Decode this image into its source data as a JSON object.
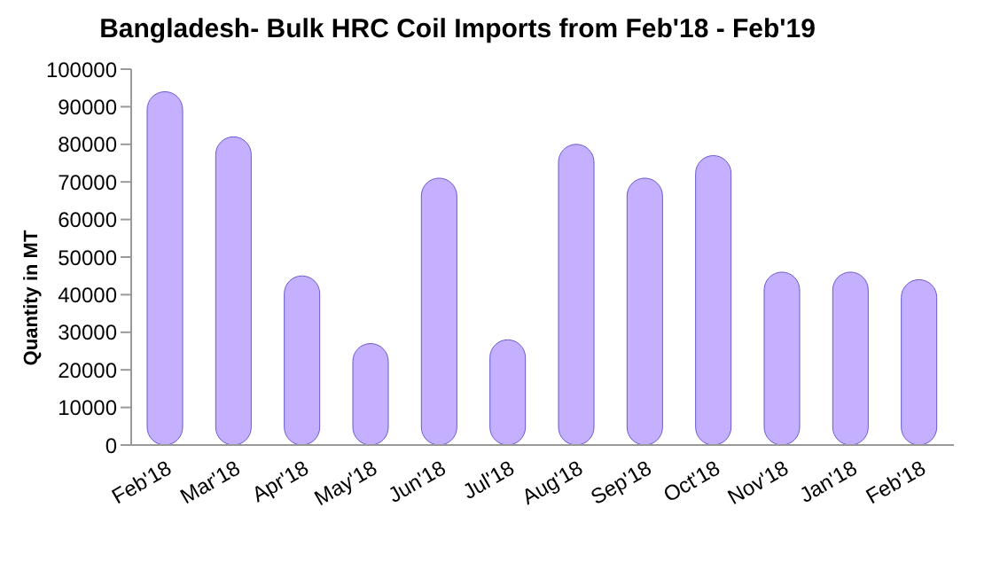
{
  "chart_data": {
    "type": "bar",
    "title": "Bangladesh- Bulk HRC Coil Imports from Feb'18 - Feb'19",
    "ylabel": "Quantity in MT",
    "categories": [
      "Feb'18",
      "Mar'18",
      "Apr'18",
      "May'18",
      "Jun'18",
      "Jul'18",
      "Aug'18",
      "Sep'18",
      "Oct'18",
      "Nov'18",
      "Jan'18",
      "Feb'18"
    ],
    "values": [
      94000,
      82000,
      45000,
      27000,
      71000,
      28000,
      80000,
      71000,
      77000,
      46000,
      46000,
      44000
    ],
    "color": "#c4b0ff",
    "ylim": [
      0,
      100000
    ],
    "yticks": [
      0,
      10000,
      20000,
      30000,
      40000,
      50000,
      60000,
      70000,
      80000,
      90000,
      100000
    ],
    "grid": false,
    "legend": false
  }
}
